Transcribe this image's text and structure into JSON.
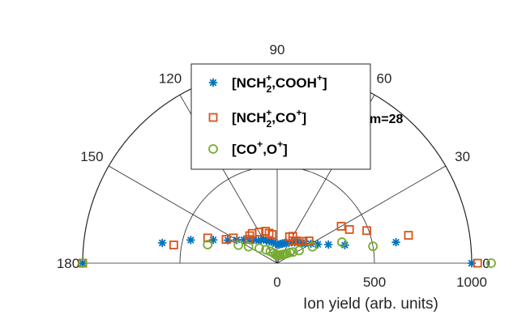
{
  "chart_data": {
    "type": "scatter",
    "coordinate_system": "polar (half, 0-180 deg)",
    "title": "",
    "xlabel": "Ion yield (arb. units)",
    "ylabel": "",
    "rlim": [
      0,
      1000
    ],
    "r_ticks": [
      "0",
      "500",
      "1000"
    ],
    "r_tick_values": [
      0,
      500,
      1000
    ],
    "theta_ticks": [
      "0",
      "30",
      "60",
      "90",
      "120",
      "150",
      "180"
    ],
    "theta_tick_values": [
      0,
      30,
      60,
      90,
      120,
      150,
      180
    ],
    "grid": true,
    "legend_position": "top-center",
    "annotation": "m=28",
    "series": [
      {
        "name": "[NCH2+,COOH+]",
        "legend_main": "[NCH",
        "legend_sub": "2",
        "legend_sup1": "+",
        "legend_mid": ",COOH",
        "legend_sup2": "+",
        "legend_end": "]",
        "marker": "asterisk",
        "color": "#0072BD",
        "theta": [
          0,
          10,
          15,
          20,
          25,
          30,
          35,
          40,
          45,
          50,
          55,
          60,
          65,
          70,
          75,
          80,
          85,
          90,
          95,
          100,
          105,
          110,
          115,
          120,
          125,
          130,
          135,
          140,
          145,
          150,
          155,
          160,
          165,
          170,
          180
        ],
        "r": [
          1000,
          620,
          360,
          280,
          230,
          200,
          175,
          160,
          150,
          140,
          132,
          120,
          115,
          110,
          105,
          100,
          95,
          40,
          100,
          110,
          115,
          120,
          130,
          140,
          145,
          150,
          170,
          185,
          210,
          240,
          280,
          350,
          460,
          600,
          1000
        ]
      },
      {
        "name": "[NCH2+,CO+]",
        "legend_main": "[NCH",
        "legend_sub": "2",
        "legend_sup1": "+",
        "legend_mid": ",CO",
        "legend_sup2": "+",
        "legend_end": "]",
        "marker": "square",
        "color": "#D95319",
        "theta": [
          0,
          12,
          20,
          25,
          30,
          35,
          40,
          45,
          50,
          55,
          60,
          65,
          100,
          105,
          110,
          120,
          130,
          135,
          140,
          150,
          155,
          160,
          170,
          180
        ],
        "r": [
          1030,
          690,
          490,
          410,
          380,
          200,
          175,
          160,
          150,
          140,
          160,
          150,
          150,
          160,
          175,
          185,
          200,
          200,
          190,
          260,
          290,
          380,
          540,
          1000
        ]
      },
      {
        "name": "[CO+,O+]",
        "legend_main": "[CO",
        "legend_sub": "",
        "legend_sup1": "+",
        "legend_mid": ",O",
        "legend_sup2": "+",
        "legend_end": "]",
        "marker": "circle",
        "color": "#77AC30",
        "theta": [
          0,
          10,
          18,
          25,
          30,
          35,
          40,
          45,
          50,
          55,
          60,
          70,
          80,
          90,
          100,
          110,
          120,
          130,
          140,
          150,
          155,
          165,
          180
        ],
        "r": [
          1100,
          500,
          350,
          200,
          130,
          100,
          85,
          70,
          60,
          55,
          50,
          45,
          40,
          40,
          45,
          55,
          70,
          90,
          120,
          170,
          220,
          370,
          1000
        ]
      }
    ]
  }
}
